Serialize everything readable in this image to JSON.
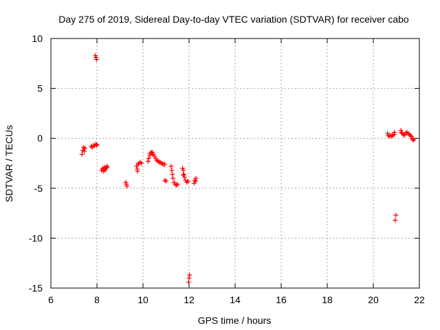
{
  "chart_data": {
    "type": "scatter",
    "title": "Day 275 of 2019, Sidereal Day-to-day VTEC variation (SDTVAR) for receiver cabo",
    "xlabel": "GPS time / hours",
    "ylabel": "SDTVAR / TECUs",
    "xlim": [
      6,
      22
    ],
    "ylim": [
      -15,
      10
    ],
    "xticks": [
      6,
      8,
      10,
      12,
      14,
      16,
      18,
      20,
      22
    ],
    "yticks": [
      -15,
      -10,
      -5,
      0,
      5,
      10
    ],
    "grid": true,
    "marker": "+",
    "series": [
      {
        "name": "SDTVAR",
        "color": "#ff0000",
        "x": [
          7.35,
          7.38,
          7.42,
          7.45,
          7.48,
          7.75,
          7.8,
          7.85,
          7.9,
          7.95,
          7.98,
          8.0,
          7.93,
          7.96,
          7.98,
          8.2,
          8.25,
          8.3,
          8.33,
          8.38,
          8.42,
          8.45,
          8.28,
          8.35,
          8.4,
          9.25,
          9.28,
          9.3,
          9.72,
          9.75,
          9.78,
          9.82,
          9.88,
          9.93,
          9.76,
          10.22,
          10.25,
          10.3,
          10.35,
          10.4,
          10.45,
          10.5,
          10.55,
          10.6,
          10.65,
          10.7,
          10.75,
          10.8,
          10.85,
          10.9,
          10.95,
          10.3,
          10.38,
          10.42,
          10.95,
          11.0,
          11.22,
          11.25,
          11.28,
          11.3,
          11.35,
          11.4,
          11.45,
          11.5,
          11.72,
          11.75,
          11.78,
          11.8,
          11.85,
          11.9,
          11.95,
          11.75,
          11.98,
          12.0,
          12.02,
          12.22,
          12.25,
          12.3,
          12.28,
          20.62,
          20.65,
          20.7,
          20.75,
          20.8,
          20.85,
          20.9,
          20.92,
          20.95,
          20.98,
          21.2,
          21.22,
          21.25,
          21.3,
          21.35,
          21.4,
          21.45,
          21.5,
          21.55,
          21.6,
          21.65,
          21.7,
          21.72,
          21.75
        ],
        "y": [
          -1.6,
          -1.2,
          -0.9,
          -1.3,
          -1.0,
          -0.8,
          -0.9,
          -0.7,
          -0.75,
          -0.6,
          -0.7,
          -0.65,
          8.3,
          8.1,
          7.9,
          -3.2,
          -3.0,
          -3.1,
          -2.9,
          -3.0,
          -2.9,
          -2.8,
          -3.3,
          -3.2,
          -3.0,
          -4.4,
          -4.6,
          -4.8,
          -2.8,
          -3.1,
          -2.6,
          -2.5,
          -2.4,
          -2.5,
          -3.3,
          -2.3,
          -2.0,
          -1.7,
          -1.5,
          -1.4,
          -1.6,
          -1.8,
          -2.0,
          -2.2,
          -2.3,
          -2.35,
          -2.4,
          -2.5,
          -2.55,
          -2.6,
          -2.6,
          -1.5,
          -1.4,
          -1.6,
          -4.2,
          -4.3,
          -2.8,
          -3.2,
          -3.6,
          -4.0,
          -4.4,
          -4.6,
          -4.7,
          -4.6,
          -3.0,
          -3.2,
          -3.6,
          -3.9,
          -4.2,
          -4.4,
          -4.3,
          -3.7,
          -14.4,
          -14.0,
          -13.7,
          -4.5,
          -4.2,
          -4.0,
          -4.3,
          0.5,
          0.3,
          0.2,
          0.3,
          0.2,
          0.3,
          0.4,
          0.6,
          -8.2,
          -7.7,
          0.8,
          0.6,
          0.5,
          0.4,
          0.3,
          0.5,
          0.6,
          0.5,
          0.4,
          0.3,
          0.2,
          0.0,
          -0.1,
          -0.2
        ]
      }
    ]
  }
}
